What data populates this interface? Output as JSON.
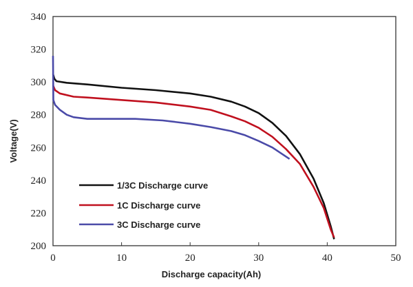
{
  "chart_data": {
    "type": "line",
    "title": "",
    "xlabel": "Discharge capacity(Ah)",
    "ylabel": "Voltage(V)",
    "xlim": [
      0,
      50
    ],
    "ylim": [
      200,
      340
    ],
    "xticks": [
      "0",
      "10",
      "20",
      "30",
      "40",
      "50"
    ],
    "yticks": [
      "200",
      "220",
      "240",
      "260",
      "280",
      "300",
      "320",
      "340"
    ],
    "grid": false,
    "legend_position": "bottom-left",
    "series": [
      {
        "name": "1/3C Discharge curve",
        "color": "#111111",
        "x": [
          0,
          0.2,
          0.5,
          2,
          5,
          10,
          15,
          20,
          23,
          26,
          28,
          30,
          32,
          34,
          36,
          38,
          39.5,
          40.5,
          41
        ],
        "y": [
          305,
          302,
          300.5,
          299.5,
          298.5,
          296.5,
          295,
          293,
          291,
          288,
          285,
          281,
          275,
          267,
          256,
          241,
          226,
          212,
          204
        ]
      },
      {
        "name": "1C Discharge curve",
        "color": "#c0101e",
        "x": [
          0,
          0.3,
          1,
          3,
          5,
          10,
          15,
          20,
          23,
          26,
          28,
          30,
          32,
          34,
          36,
          38,
          39.5,
          40.5,
          41
        ],
        "y": [
          298,
          295,
          293,
          291,
          290.5,
          289,
          287.5,
          285,
          283,
          279,
          276,
          272,
          266.5,
          259,
          250,
          236,
          223,
          210,
          205
        ]
      },
      {
        "name": "3C Discharge curve",
        "color": "#4a4aa8",
        "x": [
          0,
          0.05,
          0.3,
          1,
          2,
          3,
          5,
          8,
          12,
          16,
          20,
          23,
          26,
          28,
          30,
          32,
          34.5
        ],
        "y": [
          316,
          289,
          286,
          283,
          280,
          278.5,
          277.5,
          277.5,
          277.5,
          276.5,
          274.5,
          272.5,
          270,
          267.5,
          264,
          260,
          253
        ]
      }
    ]
  }
}
